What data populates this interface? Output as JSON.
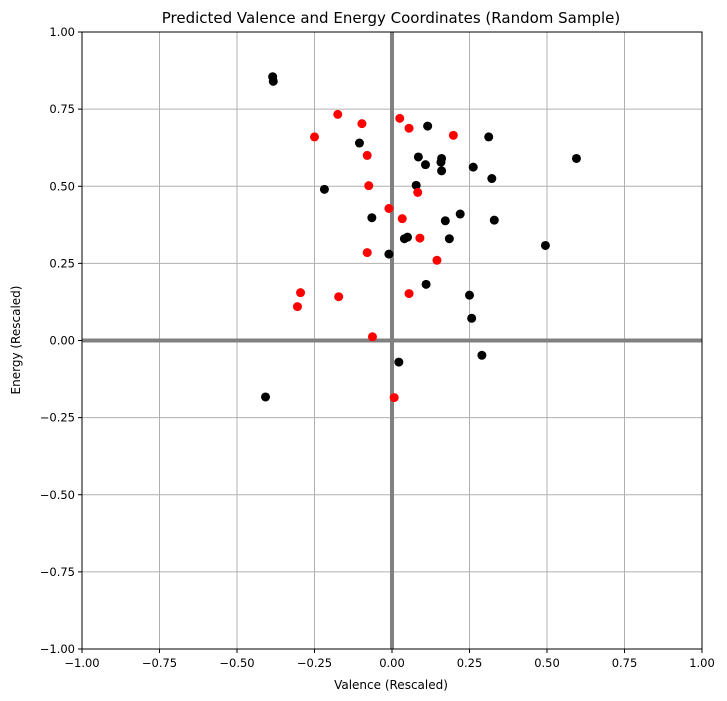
{
  "chart_data": {
    "type": "scatter",
    "title": "Predicted Valence and Energy Coordinates (Random Sample)",
    "xlabel": "Valence (Rescaled)",
    "ylabel": "Energy (Rescaled)",
    "xlim": [
      -1.0,
      1.0
    ],
    "ylim": [
      -1.0,
      1.0
    ],
    "grid": true,
    "x_ticks": [
      "−1.00",
      "−0.75",
      "−0.50",
      "−0.25",
      "0.00",
      "0.25",
      "0.50",
      "0.75",
      "1.00"
    ],
    "y_ticks": [
      "−1.00",
      "−0.75",
      "−0.50",
      "−0.25",
      "0.00",
      "0.25",
      "0.50",
      "0.75",
      "1.00"
    ],
    "x_tick_values": [
      -1.0,
      -0.75,
      -0.5,
      -0.25,
      0.0,
      0.25,
      0.5,
      0.75,
      1.0
    ],
    "y_tick_values": [
      -1.0,
      -0.75,
      -0.5,
      -0.25,
      0.0,
      0.25,
      0.5,
      0.75,
      1.0
    ],
    "zero_lines_color": "#808080",
    "series": [
      {
        "color": "#000000",
        "points": [
          [
            -0.385,
            0.855
          ],
          [
            -0.383,
            0.84
          ],
          [
            0.115,
            0.695
          ],
          [
            -0.105,
            0.64
          ],
          [
            0.312,
            0.66
          ],
          [
            0.595,
            0.59
          ],
          [
            0.085,
            0.595
          ],
          [
            0.16,
            0.59
          ],
          [
            0.158,
            0.578
          ],
          [
            0.108,
            0.57
          ],
          [
            0.262,
            0.562
          ],
          [
            0.16,
            0.55
          ],
          [
            0.322,
            0.525
          ],
          [
            0.078,
            0.503
          ],
          [
            -0.218,
            0.49
          ],
          [
            0.22,
            0.41
          ],
          [
            -0.065,
            0.398
          ],
          [
            0.172,
            0.388
          ],
          [
            0.33,
            0.39
          ],
          [
            0.05,
            0.335
          ],
          [
            0.04,
            0.33
          ],
          [
            0.185,
            0.33
          ],
          [
            0.495,
            0.308
          ],
          [
            -0.01,
            0.28
          ],
          [
            0.11,
            0.182
          ],
          [
            0.25,
            0.147
          ],
          [
            0.257,
            0.072
          ],
          [
            0.022,
            -0.07
          ],
          [
            0.29,
            -0.048
          ],
          [
            -0.408,
            -0.183
          ]
        ]
      },
      {
        "color": "#ff0000",
        "points": [
          [
            -0.175,
            0.733
          ],
          [
            0.025,
            0.72
          ],
          [
            -0.097,
            0.703
          ],
          [
            0.055,
            0.688
          ],
          [
            0.198,
            0.665
          ],
          [
            -0.25,
            0.66
          ],
          [
            -0.08,
            0.6
          ],
          [
            -0.075,
            0.502
          ],
          [
            0.083,
            0.48
          ],
          [
            -0.01,
            0.428
          ],
          [
            0.033,
            0.395
          ],
          [
            0.09,
            0.332
          ],
          [
            -0.08,
            0.285
          ],
          [
            0.145,
            0.26
          ],
          [
            -0.295,
            0.155
          ],
          [
            0.055,
            0.152
          ],
          [
            -0.172,
            0.142
          ],
          [
            -0.305,
            0.11
          ],
          [
            -0.063,
            0.012
          ],
          [
            0.007,
            -0.185
          ]
        ]
      }
    ]
  }
}
